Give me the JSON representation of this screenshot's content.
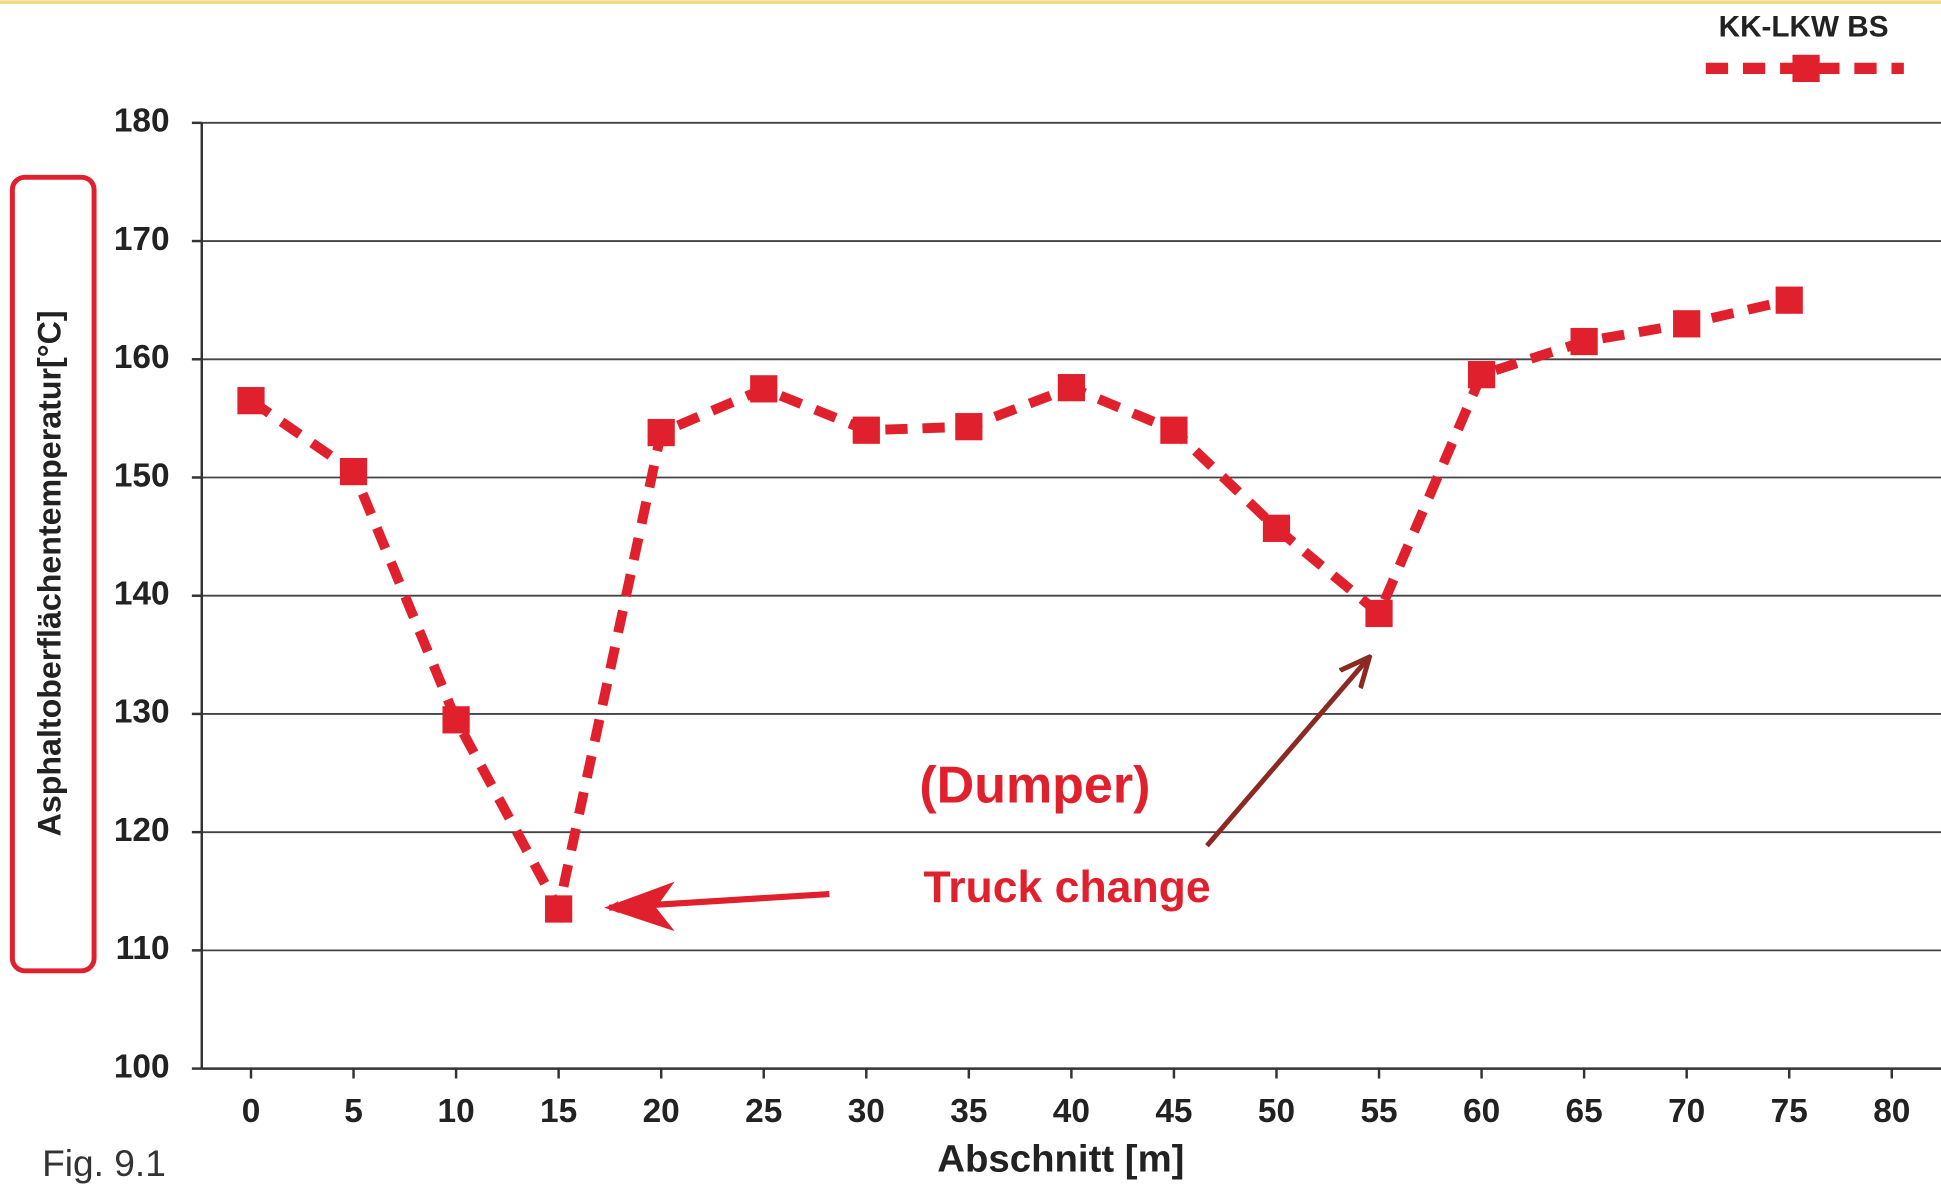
{
  "chart_data": {
    "type": "line",
    "x": [
      0,
      5,
      10,
      15,
      20,
      25,
      30,
      35,
      40,
      45,
      50,
      55,
      60,
      65,
      70,
      75
    ],
    "series": [
      {
        "name": "KK-LKW BS",
        "color": "#e0202c",
        "values": [
          156.5,
          150.5,
          129.5,
          113.5,
          153.8,
          157.5,
          154,
          154.3,
          157.6,
          154,
          145.7,
          138.5,
          158.7,
          161.5,
          163,
          165
        ]
      }
    ],
    "xlabel": "Abschnitt [m]",
    "ylabel": "Asphaltoberflächentemperatur[°C]",
    "xlim": [
      -2.4,
      82.4
    ],
    "xticks": [
      0,
      5,
      10,
      15,
      20,
      25,
      30,
      35,
      40,
      45,
      50,
      55,
      60,
      65,
      70,
      75,
      80
    ],
    "ylim": [
      100,
      180
    ],
    "yticks": [
      100,
      110,
      120,
      130,
      140,
      150,
      160,
      170,
      180
    ],
    "grid": true,
    "legend": "upper right",
    "annotations": [
      "(Dumper)",
      "Truck change"
    ],
    "caption": "Fig. 9.1"
  }
}
